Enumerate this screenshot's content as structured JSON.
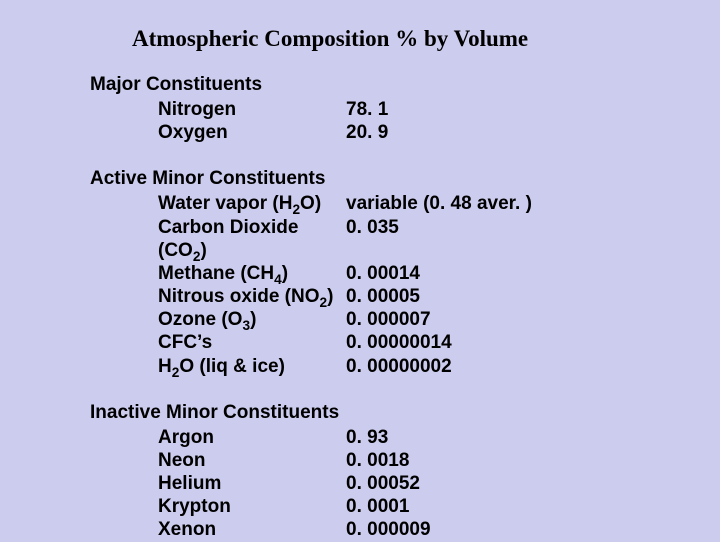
{
  "title": "Atmospheric Composition % by Volume",
  "background_color": "#ccccee",
  "text_color": "#000000",
  "title_font": "Times New Roman",
  "body_font": "Arial",
  "title_fontsize": 23,
  "body_fontsize": 19,
  "sections": [
    {
      "header": "Major Constituents",
      "rows": [
        {
          "label": "Nitrogen",
          "value": "78. 1"
        },
        {
          "label": "Oxygen",
          "value": "20. 9"
        }
      ]
    },
    {
      "header": "Active Minor Constituents",
      "rows": [
        {
          "label": "Water vapor (H",
          "sub": "2",
          "label_after": "O)",
          "value": "variable (0. 48 aver. )"
        },
        {
          "label": "Carbon Dioxide (CO",
          "sub": "2",
          "label_after": ")",
          "value": "0. 035"
        },
        {
          "label": "Methane (CH",
          "sub": "4",
          "label_after": ")",
          "value": "0. 00014"
        },
        {
          "label": "Nitrous oxide (NO",
          "sub": "2",
          "label_after": ")",
          "value": "0. 00005"
        },
        {
          "label": "Ozone (O",
          "sub": "3",
          "label_after": ")",
          "value": "0. 000007"
        },
        {
          "label": "CFC’s",
          "value": "0. 00000014"
        },
        {
          "label": "H",
          "sub": "2",
          "label_after": "O (liq & ice)",
          "value": "0. 00000002"
        }
      ]
    },
    {
      "header": "Inactive Minor Constituents",
      "rows": [
        {
          "label": "Argon",
          "value": "0. 93"
        },
        {
          "label": "Neon",
          "value": "0. 0018"
        },
        {
          "label": "Helium",
          "value": "0. 00052"
        },
        {
          "label": "Krypton",
          "value": "0. 0001"
        },
        {
          "label": "Xenon",
          "value": "0. 000009"
        }
      ]
    }
  ]
}
